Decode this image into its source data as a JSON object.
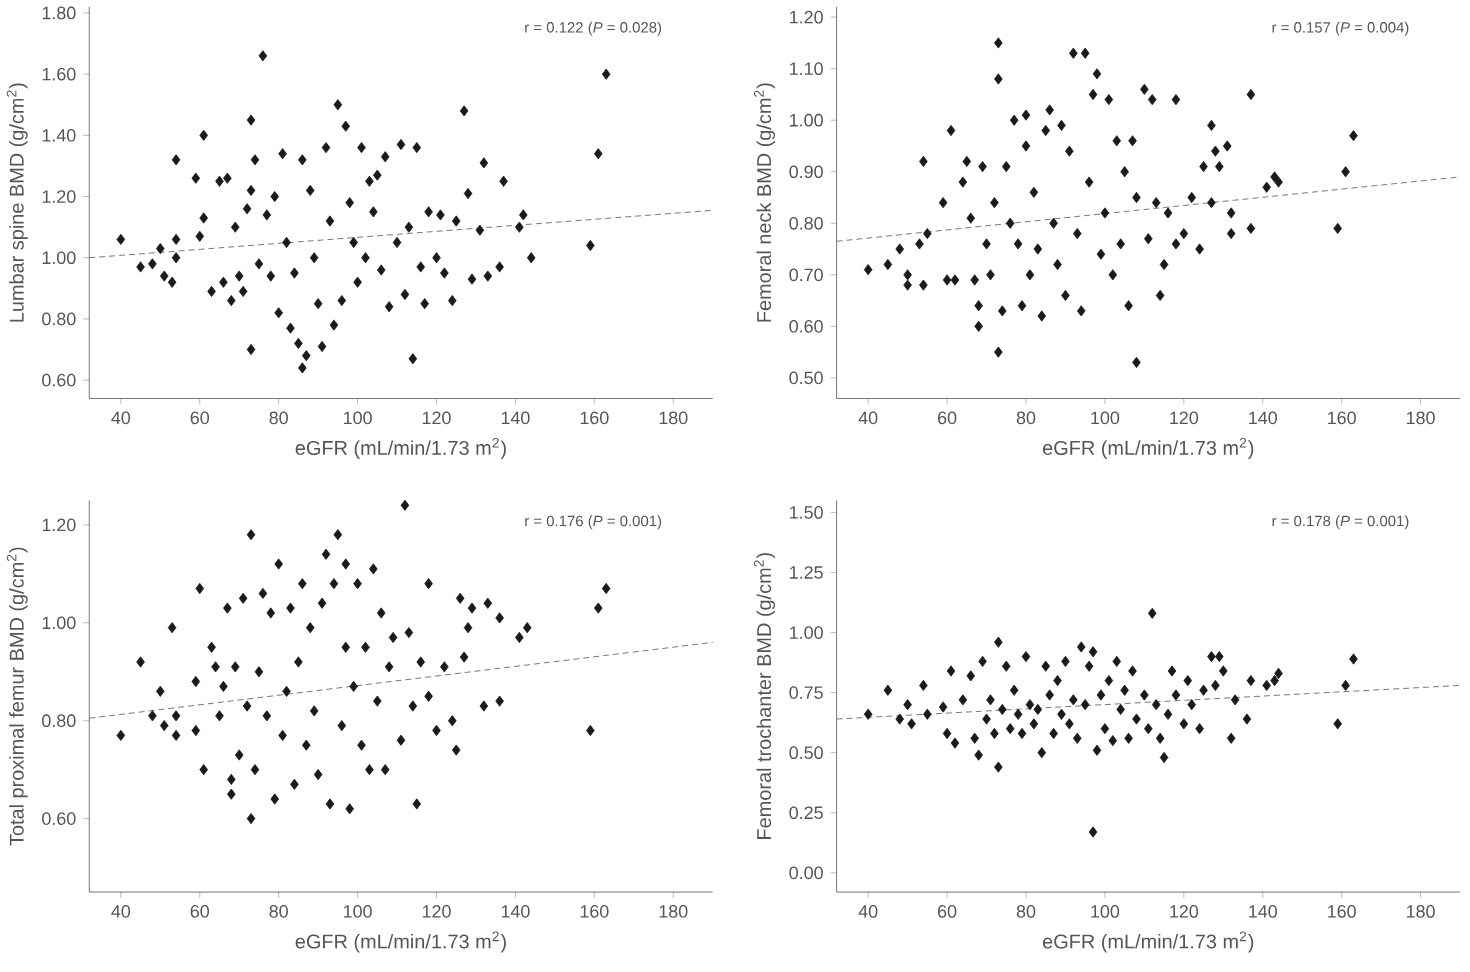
{
  "chart_data": [
    {
      "type": "scatter",
      "xlabel": "eGFR (mL/min/1.73 m$^{2}$)",
      "ylabel": "Lumbar spine BMD (g/cm$^{2}$)",
      "annotations": [
        "r = 0.122 (*P* = 0.028)"
      ],
      "xlim": [
        32,
        190
      ],
      "ylim": [
        0.54,
        1.82
      ],
      "xticks": [
        40,
        60,
        80,
        100,
        120,
        140,
        160,
        180
      ],
      "yticks": [
        {
          "value": 0.6,
          "label": "0.60"
        },
        {
          "value": 0.8,
          "label": "0.80"
        },
        {
          "value": 1.0,
          "label": "1.00"
        },
        {
          "value": 1.2,
          "label": "1.20"
        },
        {
          "value": 1.4,
          "label": "1.40"
        },
        {
          "value": 1.6,
          "label": "1.60"
        },
        {
          "value": 1.8,
          "label": "1.80"
        }
      ],
      "series": [
        {
          "type": "scatter",
          "marker": "diamond",
          "color": "#1a1a1a",
          "x": [
            40,
            45,
            48,
            50,
            51,
            53,
            54,
            54,
            54,
            59,
            60,
            61,
            61,
            63,
            65,
            66,
            67,
            68,
            69,
            70,
            71,
            72,
            73,
            73,
            74,
            73,
            75,
            76,
            77,
            78,
            79,
            80,
            81,
            82,
            83,
            84,
            85,
            86,
            86,
            87,
            88,
            89,
            90,
            91,
            92,
            93,
            94,
            95,
            96,
            97,
            98,
            99,
            100,
            101,
            102,
            103,
            104,
            105,
            106,
            107,
            108,
            110,
            111,
            112,
            113,
            114,
            115,
            116,
            117,
            118,
            120,
            121,
            122,
            124,
            125,
            127,
            128,
            129,
            131,
            132,
            133,
            136,
            137,
            141,
            142,
            144,
            159,
            161,
            163
          ],
          "values": [
            1.06,
            0.97,
            0.98,
            1.03,
            0.94,
            0.92,
            1.32,
            1.06,
            1.0,
            1.26,
            1.07,
            1.4,
            1.13,
            0.89,
            1.25,
            0.92,
            1.26,
            0.86,
            1.1,
            0.94,
            0.89,
            1.16,
            1.22,
            1.45,
            1.32,
            0.7,
            0.98,
            1.66,
            1.14,
            0.94,
            1.2,
            0.82,
            1.34,
            1.05,
            0.77,
            0.95,
            0.72,
            0.64,
            1.32,
            0.68,
            1.22,
            1.0,
            0.85,
            0.71,
            1.36,
            1.12,
            0.78,
            1.5,
            0.86,
            1.43,
            1.18,
            1.05,
            0.92,
            1.36,
            1.0,
            1.25,
            1.15,
            1.27,
            0.96,
            1.33,
            0.84,
            1.05,
            1.37,
            0.88,
            1.1,
            0.67,
            1.36,
            0.97,
            0.85,
            1.15,
            1.0,
            1.14,
            0.95,
            0.86,
            1.12,
            1.48,
            1.21,
            0.93,
            1.09,
            1.31,
            0.94,
            0.97,
            1.25,
            1.1,
            1.14,
            1.0,
            1.04,
            1.34,
            1.6
          ]
        },
        {
          "type": "line",
          "line_style": "dashed",
          "marker": "none",
          "color": "#555555",
          "x": [
            32,
            190
          ],
          "values": [
            1.0,
            1.155
          ]
        }
      ]
    },
    {
      "type": "scatter",
      "xlabel": "eGFR (mL/min/1.73 m$^{2}$)",
      "ylabel": "Femoral neck BMD (g/cm$^{2}$)",
      "annotations": [
        "r = 0.157 (*P* = 0.004)"
      ],
      "xlim": [
        32,
        190
      ],
      "ylim": [
        0.46,
        1.22
      ],
      "xticks": [
        40,
        60,
        80,
        100,
        120,
        140,
        160,
        180
      ],
      "yticks": [
        {
          "value": 0.5,
          "label": "0.50"
        },
        {
          "value": 0.6,
          "label": "0.60"
        },
        {
          "value": 0.7,
          "label": "0.70"
        },
        {
          "value": 0.8,
          "label": "0.80"
        },
        {
          "value": 0.9,
          "label": "0.90"
        },
        {
          "value": 1.0,
          "label": "1.00"
        },
        {
          "value": 1.1,
          "label": "1.10"
        },
        {
          "value": 1.2,
          "label": "1.20"
        }
      ],
      "series": [
        {
          "type": "scatter",
          "marker": "diamond",
          "color": "#1a1a1a",
          "x": [
            40,
            45,
            48,
            50,
            50,
            53,
            54,
            54,
            55,
            59,
            60,
            61,
            62,
            64,
            65,
            66,
            67,
            68,
            68,
            69,
            70,
            71,
            72,
            73,
            73,
            73,
            74,
            75,
            76,
            77,
            78,
            79,
            80,
            80,
            81,
            82,
            83,
            84,
            85,
            86,
            87,
            88,
            89,
            90,
            91,
            92,
            93,
            94,
            95,
            96,
            97,
            98,
            99,
            100,
            101,
            102,
            103,
            104,
            105,
            106,
            107,
            108,
            108,
            110,
            111,
            112,
            113,
            114,
            115,
            116,
            118,
            118,
            120,
            122,
            124,
            125,
            127,
            127,
            128,
            129,
            131,
            132,
            132,
            137,
            137,
            141,
            143,
            144,
            159,
            161,
            163
          ],
          "values": [
            0.71,
            0.72,
            0.75,
            0.68,
            0.7,
            0.76,
            0.92,
            0.68,
            0.78,
            0.84,
            0.69,
            0.98,
            0.69,
            0.88,
            0.92,
            0.81,
            0.69,
            0.64,
            0.6,
            0.91,
            0.76,
            0.7,
            0.84,
            0.55,
            1.15,
            1.08,
            0.63,
            0.91,
            0.8,
            1.0,
            0.76,
            0.64,
            0.95,
            1.01,
            0.7,
            0.86,
            0.75,
            0.62,
            0.98,
            1.02,
            0.8,
            0.72,
            0.99,
            0.66,
            0.94,
            1.13,
            0.78,
            0.63,
            1.13,
            0.88,
            1.05,
            1.09,
            0.74,
            0.82,
            1.04,
            0.7,
            0.96,
            0.76,
            0.9,
            0.64,
            0.96,
            0.53,
            0.85,
            1.06,
            0.77,
            1.04,
            0.84,
            0.66,
            0.72,
            0.82,
            1.04,
            0.76,
            0.78,
            0.85,
            0.75,
            0.91,
            0.99,
            0.84,
            0.94,
            0.91,
            0.95,
            0.78,
            0.82,
            1.05,
            0.79,
            0.87,
            0.89,
            0.88,
            0.79,
            0.9,
            0.97
          ]
        },
        {
          "type": "line",
          "line_style": "dashed",
          "marker": "none",
          "color": "#555555",
          "x": [
            32,
            190
          ],
          "values": [
            0.765,
            0.89
          ]
        }
      ]
    },
    {
      "type": "scatter",
      "xlabel": "eGFR (mL/min/1.73 m$^{2}$)",
      "ylabel": "Total proximal femur BMD (g/cm$^{2}$)",
      "annotations": [
        "r = 0.176 (*P* = 0.001)"
      ],
      "xlim": [
        32,
        190
      ],
      "ylim": [
        0.45,
        1.25
      ],
      "xticks": [
        40,
        60,
        80,
        100,
        120,
        140,
        160,
        180
      ],
      "yticks": [
        {
          "value": 0.6,
          "label": "0.60"
        },
        {
          "value": 0.8,
          "label": "0.80"
        },
        {
          "value": 1.0,
          "label": "1.00"
        },
        {
          "value": 1.2,
          "label": "1.20"
        }
      ],
      "series": [
        {
          "type": "scatter",
          "marker": "diamond",
          "color": "#1a1a1a",
          "x": [
            40,
            45,
            48,
            50,
            51,
            53,
            54,
            54,
            59,
            59,
            60,
            61,
            63,
            64,
            65,
            66,
            67,
            68,
            68,
            69,
            70,
            71,
            72,
            73,
            73,
            74,
            75,
            76,
            77,
            78,
            79,
            80,
            81,
            82,
            83,
            84,
            85,
            86,
            87,
            88,
            89,
            90,
            91,
            92,
            93,
            94,
            95,
            96,
            97,
            97,
            98,
            99,
            100,
            101,
            102,
            103,
            104,
            105,
            106,
            107,
            108,
            109,
            111,
            112,
            113,
            114,
            115,
            116,
            118,
            118,
            120,
            122,
            124,
            125,
            126,
            127,
            128,
            129,
            132,
            133,
            136,
            136,
            141,
            143,
            159,
            161,
            163
          ],
          "values": [
            0.77,
            0.92,
            0.81,
            0.86,
            0.79,
            0.99,
            0.77,
            0.81,
            0.88,
            0.78,
            1.07,
            0.7,
            0.95,
            0.91,
            0.81,
            0.87,
            1.03,
            0.68,
            0.65,
            0.91,
            0.73,
            1.05,
            0.83,
            0.6,
            1.18,
            0.7,
            0.9,
            1.06,
            0.81,
            1.02,
            0.64,
            1.12,
            0.77,
            0.86,
            1.03,
            0.67,
            0.92,
            1.08,
            0.75,
            0.99,
            0.82,
            0.69,
            1.04,
            1.14,
            0.63,
            1.08,
            1.18,
            0.79,
            0.95,
            1.12,
            0.62,
            0.87,
            1.08,
            0.75,
            0.95,
            0.7,
            1.11,
            0.84,
            1.02,
            0.7,
            0.91,
            0.97,
            0.76,
            1.24,
            0.98,
            0.83,
            0.63,
            0.92,
            1.08,
            0.85,
            0.78,
            0.91,
            0.8,
            0.74,
            1.05,
            0.93,
            0.99,
            1.03,
            0.83,
            1.04,
            1.01,
            0.84,
            0.97,
            0.99,
            0.78,
            1.03,
            1.07
          ]
        },
        {
          "type": "line",
          "line_style": "dashed",
          "marker": "none",
          "color": "#555555",
          "x": [
            32,
            190
          ],
          "values": [
            0.805,
            0.96
          ]
        }
      ]
    },
    {
      "type": "scatter",
      "xlabel": "eGFR (mL/min/1.73 m$^{2}$)",
      "ylabel": "Femoral trochanter BMD (g/cm$^{2}$)",
      "annotations": [
        "r = 0.178 (*P* = 0.001)"
      ],
      "xlim": [
        32,
        190
      ],
      "ylim": [
        -0.08,
        1.55
      ],
      "xticks": [
        40,
        60,
        80,
        100,
        120,
        140,
        160,
        180
      ],
      "yticks": [
        {
          "value": 0.0,
          "label": "0.00"
        },
        {
          "value": 0.25,
          "label": "0.25"
        },
        {
          "value": 0.5,
          "label": "0.50"
        },
        {
          "value": 0.75,
          "label": "0.75"
        },
        {
          "value": 1.0,
          "label": "1.00"
        },
        {
          "value": 1.25,
          "label": "1.25"
        },
        {
          "value": 1.5,
          "label": "1.50"
        }
      ],
      "series": [
        {
          "type": "scatter",
          "marker": "diamond",
          "color": "#1a1a1a",
          "x": [
            40,
            45,
            48,
            50,
            51,
            54,
            55,
            59,
            60,
            61,
            62,
            64,
            66,
            67,
            68,
            69,
            70,
            71,
            72,
            73,
            73,
            74,
            75,
            76,
            77,
            78,
            79,
            80,
            81,
            82,
            83,
            84,
            85,
            86,
            87,
            88,
            89,
            90,
            91,
            92,
            93,
            94,
            95,
            96,
            97,
            97,
            98,
            99,
            100,
            101,
            102,
            103,
            104,
            105,
            106,
            107,
            108,
            110,
            111,
            112,
            113,
            114,
            115,
            116,
            117,
            118,
            120,
            121,
            122,
            124,
            125,
            127,
            128,
            129,
            130,
            132,
            133,
            136,
            137,
            141,
            143,
            144,
            159,
            161,
            163
          ],
          "values": [
            0.66,
            0.76,
            0.64,
            0.7,
            0.62,
            0.78,
            0.66,
            0.69,
            0.58,
            0.84,
            0.54,
            0.72,
            0.82,
            0.56,
            0.49,
            0.88,
            0.64,
            0.72,
            0.58,
            0.96,
            0.44,
            0.68,
            0.86,
            0.6,
            0.76,
            0.66,
            0.58,
            0.9,
            0.7,
            0.62,
            0.68,
            0.5,
            0.86,
            0.74,
            0.58,
            0.8,
            0.66,
            0.88,
            0.62,
            0.72,
            0.56,
            0.94,
            0.7,
            0.86,
            0.17,
            0.92,
            0.51,
            0.74,
            0.6,
            0.8,
            0.55,
            0.88,
            0.68,
            0.76,
            0.56,
            0.84,
            0.64,
            0.74,
            0.6,
            1.08,
            0.7,
            0.56,
            0.48,
            0.66,
            0.84,
            0.74,
            0.62,
            0.8,
            0.7,
            0.6,
            0.76,
            0.9,
            0.78,
            0.9,
            0.84,
            0.56,
            0.72,
            0.64,
            0.8,
            0.78,
            0.8,
            0.83,
            0.62,
            0.78,
            0.89
          ]
        },
        {
          "type": "line",
          "line_style": "dashed",
          "marker": "none",
          "color": "#555555",
          "x": [
            32,
            190
          ],
          "values": [
            0.64,
            0.78
          ]
        }
      ]
    }
  ]
}
